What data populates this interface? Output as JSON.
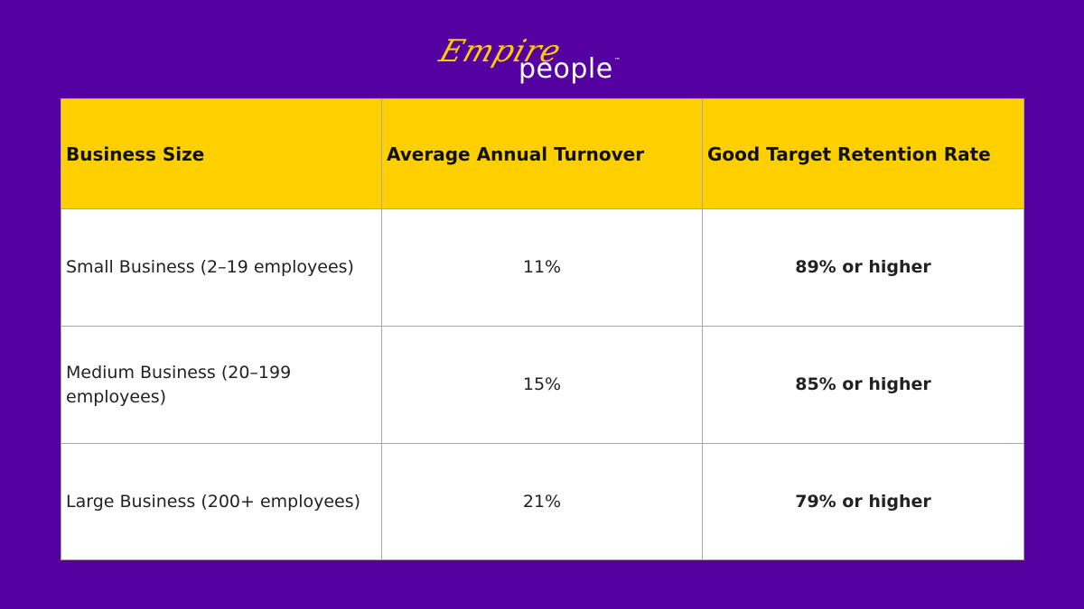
{
  "brand": {
    "script": "Empire",
    "word": "people",
    "trademark": "™",
    "accent_color": "#ffcc00",
    "background_color": "#5500a0"
  },
  "table": {
    "header_color": "#ffcf00",
    "headers": [
      "Business Size",
      "Average Annual Turnover",
      "Good Target Retention Rate"
    ],
    "rows": [
      {
        "size": "Small Business (2–19 employees)",
        "turnover": "11%",
        "retention": "89% or higher"
      },
      {
        "size": "Medium Business (20–199 employees)",
        "turnover": "15%",
        "retention": "85% or higher"
      },
      {
        "size": "Large Business (200+ employees)",
        "turnover": "21%",
        "retention": "79% or higher"
      }
    ]
  }
}
